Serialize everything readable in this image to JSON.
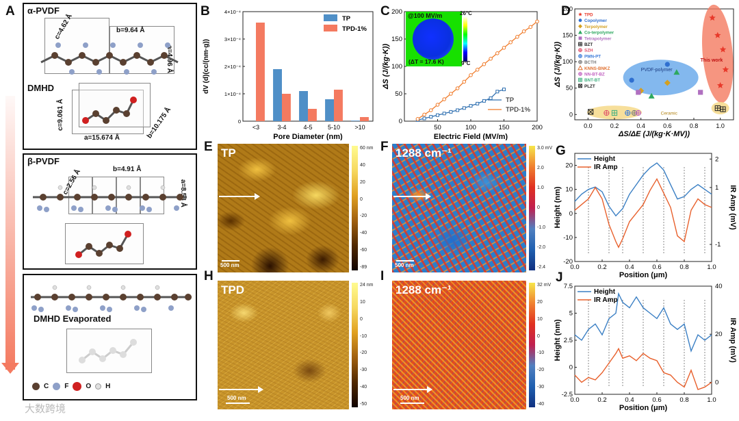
{
  "figure": {
    "watermark": "大数跨境",
    "panel_letters": {
      "A": "A",
      "B": "B",
      "C": "C",
      "D": "D",
      "E": "E",
      "F": "F",
      "G": "G",
      "H": "H",
      "I": "I",
      "J": "J"
    }
  },
  "panelA": {
    "alpha": {
      "title": "α-PVDF",
      "c1": "c=4.62 Å",
      "b1": "b=9.64 Å",
      "a1": "a=4.96 Å",
      "dmhd": "DMHD",
      "c2": "c=9.061 Å",
      "b2": "b=10.175 Å",
      "a2": "a=15.674 Å"
    },
    "beta": {
      "title": "β-PVDF",
      "c": "c=2.56 Å",
      "b": "b=4.91 Å",
      "a": "a=8.58 Å"
    },
    "evap": {
      "title": "DMHD Evaporated"
    },
    "legend": [
      {
        "symbol": "C",
        "label": "C",
        "color": "#5a4030"
      },
      {
        "symbol": "F",
        "label": "F",
        "color": "#8ea0c8"
      },
      {
        "symbol": "O",
        "label": "O",
        "color": "#d02020"
      },
      {
        "symbol": "H",
        "label": "H",
        "color": "#e0e0e0"
      }
    ]
  },
  "panelB": {
    "chart_data": {
      "type": "bar",
      "categories": [
        "<3",
        "3-4",
        "4-5",
        "5-10",
        ">10"
      ],
      "series": [
        {
          "name": "TP",
          "color": "#4f8fc7",
          "values": [
            0.0,
            1.9,
            1.1,
            0.8,
            0.02
          ]
        },
        {
          "name": "TPD-1%",
          "color": "#f47a60",
          "values": [
            3.6,
            1.0,
            0.45,
            1.15,
            0.15
          ]
        }
      ],
      "xlabel": "Pore Diameter (nm)",
      "ylabel": "dV (d)(cc/(nm·g))",
      "y_exponent": "×10⁻⁴",
      "ylim": [
        0,
        4
      ],
      "yticks": [
        0,
        1,
        2,
        3,
        4
      ],
      "ytick_labels": [
        "0",
        "1×10⁻⁴",
        "2×10⁻⁴",
        "3×10⁻⁴",
        "4×10⁻⁴"
      ]
    }
  },
  "panelC": {
    "chart_data": {
      "type": "line",
      "series": [
        {
          "name": "TP",
          "color": "#2e6fb0",
          "x": [
            20,
            30,
            40,
            50,
            60,
            70,
            80,
            90,
            100,
            110,
            120,
            130,
            140,
            150
          ],
          "y": [
            2,
            5,
            8,
            11,
            14,
            17,
            20,
            24,
            28,
            32,
            37,
            42,
            54,
            58
          ]
        },
        {
          "name": "TPD-1%",
          "color": "#f07a28",
          "x": [
            20,
            30,
            40,
            50,
            60,
            70,
            80,
            90,
            100,
            110,
            120,
            130,
            140,
            150,
            160,
            170,
            180,
            190,
            200
          ],
          "y": [
            4,
            12,
            20,
            30,
            40,
            50,
            60,
            72,
            84,
            94,
            104,
            114,
            124,
            134,
            144,
            154,
            164,
            172,
            182
          ]
        }
      ],
      "xlabel": "Electric Field (MV/m)",
      "ylabel": "ΔS (J/(kg·K))",
      "xlim": [
        0,
        200
      ],
      "ylim": [
        0,
        200
      ],
      "xticks": [
        50,
        100,
        150,
        200
      ],
      "yticks": [
        0,
        50,
        100,
        150,
        200
      ]
    },
    "inset": {
      "title": "@100 MV/m",
      "delta": "(ΔT = 17.6 K)",
      "tmax": "26°C",
      "tmin": "9°C"
    }
  },
  "panelD": {
    "chart_data": {
      "type": "scatter",
      "xlabel": "ΔS/ΔE (J/(kg·K·MV))",
      "ylabel": "ΔS (J/(kg·K))",
      "xlim": [
        -0.1,
        1.1
      ],
      "ylim": [
        -10,
        200
      ],
      "xticks": [
        0.0,
        0.2,
        0.4,
        0.6,
        0.8,
        1.0
      ],
      "yticks": [
        0,
        50,
        100,
        150,
        200
      ],
      "legend": [
        {
          "name": "TPD",
          "color": "#e8392a",
          "marker": "star"
        },
        {
          "name": "Copolymer",
          "color": "#2f6fd0",
          "marker": "circle"
        },
        {
          "name": "Terpolymer",
          "color": "#d4a020",
          "marker": "diamond"
        },
        {
          "name": "Co-terpolymer",
          "color": "#2ea860",
          "marker": "triangle"
        },
        {
          "name": "Tetrapolymer",
          "color": "#b070c0",
          "marker": "square"
        },
        {
          "name": "BZT",
          "color": "#222222",
          "marker": "boxplus"
        },
        {
          "name": "SZH",
          "color": "#e0506a",
          "marker": "circplus"
        },
        {
          "name": "PMN-PT",
          "color": "#3a7ad8",
          "marker": "diamplus"
        },
        {
          "name": "BCTH",
          "color": "#777777",
          "marker": "circplus"
        },
        {
          "name": "KNNS-BNKZ",
          "color": "#e07030",
          "marker": "triangleo"
        },
        {
          "name": "NN-BT-BZ",
          "color": "#c060c0",
          "marker": "circplus"
        },
        {
          "name": "BNT-BT",
          "color": "#40b080",
          "marker": "boxplus"
        },
        {
          "name": "PLZT",
          "color": "#222222",
          "marker": "boxx"
        }
      ],
      "points": [
        {
          "series": "TPD",
          "x": 0.94,
          "y": 183
        },
        {
          "series": "TPD",
          "x": 0.98,
          "y": 150
        },
        {
          "series": "TPD",
          "x": 1.02,
          "y": 123
        },
        {
          "series": "TPD",
          "x": 1.04,
          "y": 85
        },
        {
          "series": "TPD",
          "x": 1.0,
          "y": 55
        },
        {
          "series": "Copolymer",
          "x": 0.33,
          "y": 65
        },
        {
          "series": "Copolymer",
          "x": 0.6,
          "y": 95
        },
        {
          "series": "Terpolymer",
          "x": 0.4,
          "y": 45
        },
        {
          "series": "Terpolymer",
          "x": 0.6,
          "y": 60
        },
        {
          "series": "Co-terpolymer",
          "x": 0.48,
          "y": 35
        },
        {
          "series": "Co-terpolymer",
          "x": 0.67,
          "y": 80
        },
        {
          "series": "Tetrapolymer",
          "x": 0.38,
          "y": 42
        },
        {
          "series": "Tetrapolymer",
          "x": 0.85,
          "y": 42
        },
        {
          "series": "PLZT",
          "x": 0.02,
          "y": 5
        },
        {
          "series": "SZH",
          "x": 0.14,
          "y": 3
        },
        {
          "series": "BNT-BT",
          "x": 0.2,
          "y": 3
        },
        {
          "series": "PMN-PT",
          "x": 0.3,
          "y": 3
        },
        {
          "series": "BCTH",
          "x": 0.35,
          "y": 3
        },
        {
          "series": "NN-BT-BZ",
          "x": 0.38,
          "y": 3
        },
        {
          "series": "BZT",
          "x": 0.98,
          "y": 12
        },
        {
          "series": "BZT",
          "x": 1.02,
          "y": 10
        }
      ],
      "annotations": {
        "work": "This work",
        "pvdf": "PVDF-polymer",
        "ceramic": "Ceramic"
      }
    }
  },
  "panelE": {
    "label": "TP",
    "scale": "500 nm",
    "cbar_ticks": [
      "60 nm",
      "40",
      "20",
      "0",
      "-20",
      "-40",
      "-60",
      "-89"
    ]
  },
  "panelF": {
    "label": "1288 cm⁻¹",
    "scale": "500 nm",
    "cbar_ticks": [
      "3.0 mV",
      "2.0",
      "1.0",
      "0",
      "-1.0",
      "-2.0",
      "-2.4"
    ]
  },
  "panelH": {
    "label": "TPD",
    "scale": "500 nm",
    "cbar_ticks": [
      "24 nm",
      "10",
      "0",
      "-10",
      "-20",
      "-30",
      "-40",
      "-50"
    ]
  },
  "panelI": {
    "label": "1288 cm⁻¹",
    "scale": "500 nm",
    "cbar_ticks": [
      "32 mV",
      "20",
      "10",
      "0",
      "-10",
      "-20",
      "-30",
      "-40"
    ]
  },
  "panelG": {
    "chart_data": {
      "type": "line",
      "xlabel": "Position (μm)",
      "ylabel": "Height (nm)",
      "y2label": "IR Amp (mV)",
      "xlim": [
        0,
        1
      ],
      "ylim": [
        -20,
        25
      ],
      "y2lim": [
        -1.6,
        2.2
      ],
      "xticks": [
        0,
        0.2,
        0.4,
        0.6,
        0.8,
        1.0
      ],
      "yticks": [
        -20,
        -10,
        0,
        10,
        20
      ],
      "y2ticks": [
        -1,
        1,
        2
      ],
      "series": [
        {
          "name": "Height",
          "color": "#3a7fc4",
          "axis": "left",
          "x": [
            0,
            0.05,
            0.1,
            0.15,
            0.2,
            0.25,
            0.3,
            0.35,
            0.4,
            0.45,
            0.5,
            0.55,
            0.6,
            0.65,
            0.7,
            0.75,
            0.8,
            0.85,
            0.9,
            0.95,
            1.0
          ],
          "y": [
            5,
            8,
            10,
            11,
            9,
            3,
            -1,
            2,
            8,
            12,
            16,
            19,
            21,
            18,
            12,
            6,
            7,
            10,
            12,
            10,
            8
          ]
        },
        {
          "name": "IR Amp",
          "color": "#e8602c",
          "axis": "right",
          "x": [
            0,
            0.05,
            0.1,
            0.15,
            0.2,
            0.25,
            0.3,
            0.32,
            0.35,
            0.4,
            0.45,
            0.5,
            0.55,
            0.6,
            0.65,
            0.7,
            0.75,
            0.8,
            0.85,
            0.9,
            0.95,
            1.0
          ],
          "y": [
            0.2,
            0.4,
            0.6,
            1.0,
            0.6,
            -0.3,
            -0.9,
            -1.1,
            -0.8,
            -0.2,
            0.1,
            0.4,
            0.9,
            1.3,
            0.8,
            0.3,
            -0.7,
            -0.9,
            0.2,
            0.6,
            0.4,
            0.3
          ]
        }
      ],
      "legend": [
        "Height",
        "IR Amp"
      ]
    }
  },
  "panelJ": {
    "chart_data": {
      "type": "line",
      "xlabel": "Position (μm)",
      "ylabel": "Height (nm)",
      "y2label": "IR Amp (mV)",
      "xlim": [
        0,
        1
      ],
      "ylim": [
        -2.5,
        7.5
      ],
      "y2lim": [
        -5,
        40
      ],
      "xticks": [
        0,
        0.2,
        0.4,
        0.6,
        0.8,
        1.0
      ],
      "yticks": [
        -2.5,
        0,
        2.5,
        5,
        7.5
      ],
      "y2ticks": [
        0,
        20,
        40
      ],
      "series": [
        {
          "name": "Height",
          "color": "#3a7fc4",
          "axis": "left",
          "x": [
            0,
            0.05,
            0.1,
            0.15,
            0.2,
            0.25,
            0.3,
            0.32,
            0.35,
            0.4,
            0.45,
            0.5,
            0.55,
            0.6,
            0.65,
            0.7,
            0.75,
            0.8,
            0.85,
            0.9,
            0.95,
            1.0
          ],
          "y": [
            3,
            2.5,
            3.5,
            4,
            3,
            4.5,
            5,
            6.8,
            6,
            5.5,
            6.5,
            5.5,
            5,
            4.5,
            5.5,
            4,
            3.5,
            4,
            1.5,
            3,
            2.5,
            3
          ]
        },
        {
          "name": "IR Amp",
          "color": "#e8602c",
          "axis": "right",
          "x": [
            0,
            0.05,
            0.1,
            0.15,
            0.2,
            0.25,
            0.3,
            0.32,
            0.35,
            0.4,
            0.45,
            0.5,
            0.55,
            0.6,
            0.65,
            0.7,
            0.75,
            0.8,
            0.85,
            0.9,
            0.95,
            1.0
          ],
          "y": [
            3,
            0,
            2,
            1,
            4,
            8,
            12,
            14,
            10,
            11,
            9,
            12,
            10,
            9,
            4,
            3,
            0,
            -2,
            5,
            -3,
            -2,
            0
          ]
        }
      ],
      "legend": [
        "Height",
        "IR Amp"
      ]
    }
  }
}
